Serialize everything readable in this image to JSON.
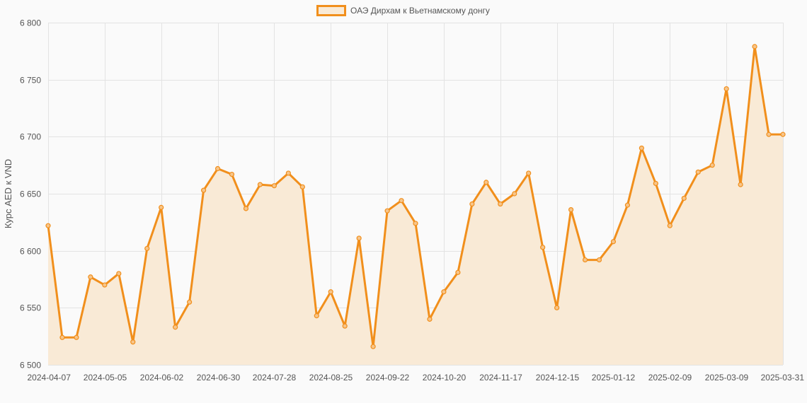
{
  "chart_data": {
    "type": "line",
    "series": [
      {
        "name": "ОАЭ Дирхам к Вьетнамскому донгу",
        "color": "#f18f1c",
        "fill": "#f9ead6",
        "values": [
          6622,
          6524,
          6524,
          6577,
          6570,
          6580,
          6520,
          6602,
          6638,
          6533,
          6555,
          6653,
          6672,
          6667,
          6637,
          6658,
          6657,
          6668,
          6656,
          6543,
          6564,
          6534,
          6611,
          6516,
          6635,
          6644,
          6624,
          6540,
          6564,
          6581,
          6641,
          6660,
          6641,
          6650,
          6668,
          6603,
          6550,
          6636,
          6592,
          6592,
          6608,
          6640,
          6690,
          6659,
          6622,
          6646,
          6669,
          6675,
          6742,
          6658,
          6779,
          6702,
          6702
        ]
      }
    ],
    "x_tick_labels": [
      "2024-04-07",
      "2024-05-05",
      "2024-06-02",
      "2024-06-30",
      "2024-07-28",
      "2024-08-25",
      "2024-09-22",
      "2024-10-20",
      "2024-11-17",
      "2024-12-15",
      "2025-01-12",
      "2025-02-09",
      "2025-03-09",
      "2025-03-31"
    ],
    "y_tick_labels": [
      "6 500",
      "6 550",
      "6 600",
      "6 650",
      "6 700",
      "6 750",
      "6 800"
    ],
    "y_ticks": [
      6500,
      6550,
      6600,
      6650,
      6700,
      6750,
      6800
    ],
    "ylim": [
      6500,
      6800
    ],
    "ylabel": "Курс AED к VND",
    "xlabel": "",
    "grid": true,
    "legend_position": "top-center"
  }
}
